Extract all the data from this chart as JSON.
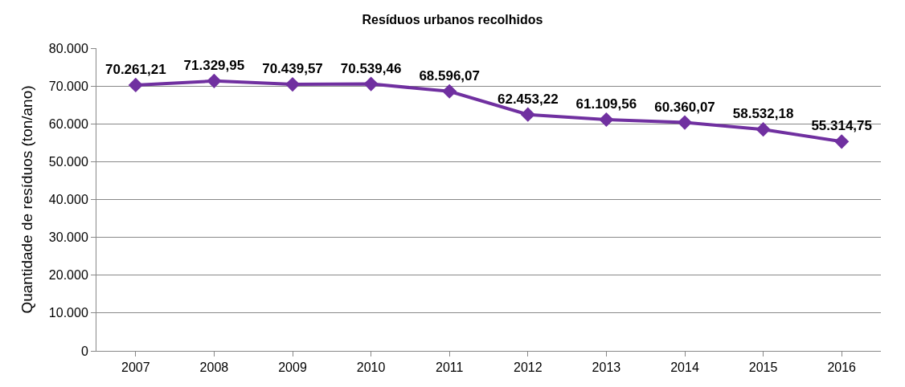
{
  "chart_data": {
    "type": "line",
    "title": "Resíduos urbanos recolhidos",
    "ylabel": "Quantidade de resíduos (ton/ano)",
    "categories": [
      "2007",
      "2008",
      "2009",
      "2010",
      "2011",
      "2012",
      "2013",
      "2014",
      "2015",
      "2016"
    ],
    "series": [
      {
        "color": "#7030a0",
        "values": [
          70261.21,
          71329.95,
          70439.57,
          70539.46,
          68596.07,
          62453.22,
          61109.56,
          60360.07,
          58532.18,
          55314.75
        ],
        "value_labels": [
          "70.261,21",
          "71.329,95",
          "70.439,57",
          "70.539,46",
          "68.596,07",
          "62.453,22",
          "61.109,56",
          "60.360,07",
          "58.532,18",
          "55.314,75"
        ]
      }
    ],
    "ylim": [
      0,
      80000
    ],
    "yticks": [
      0,
      {
        "value": 10000,
        "label": "10.000"
      },
      {
        "value": 20000,
        "label": "20.000"
      },
      {
        "value": 30000,
        "label": "30.000"
      },
      {
        "value": 40000,
        "label": "40.000"
      },
      {
        "value": 50000,
        "label": "50.000"
      },
      {
        "value": 60000,
        "label": "60.000"
      },
      {
        "value": 70000,
        "label": "70.000"
      },
      {
        "value": 80000,
        "label": "80.000"
      }
    ],
    "grid": "y",
    "marker": "diamond",
    "line_style": "solid",
    "legend": false
  }
}
